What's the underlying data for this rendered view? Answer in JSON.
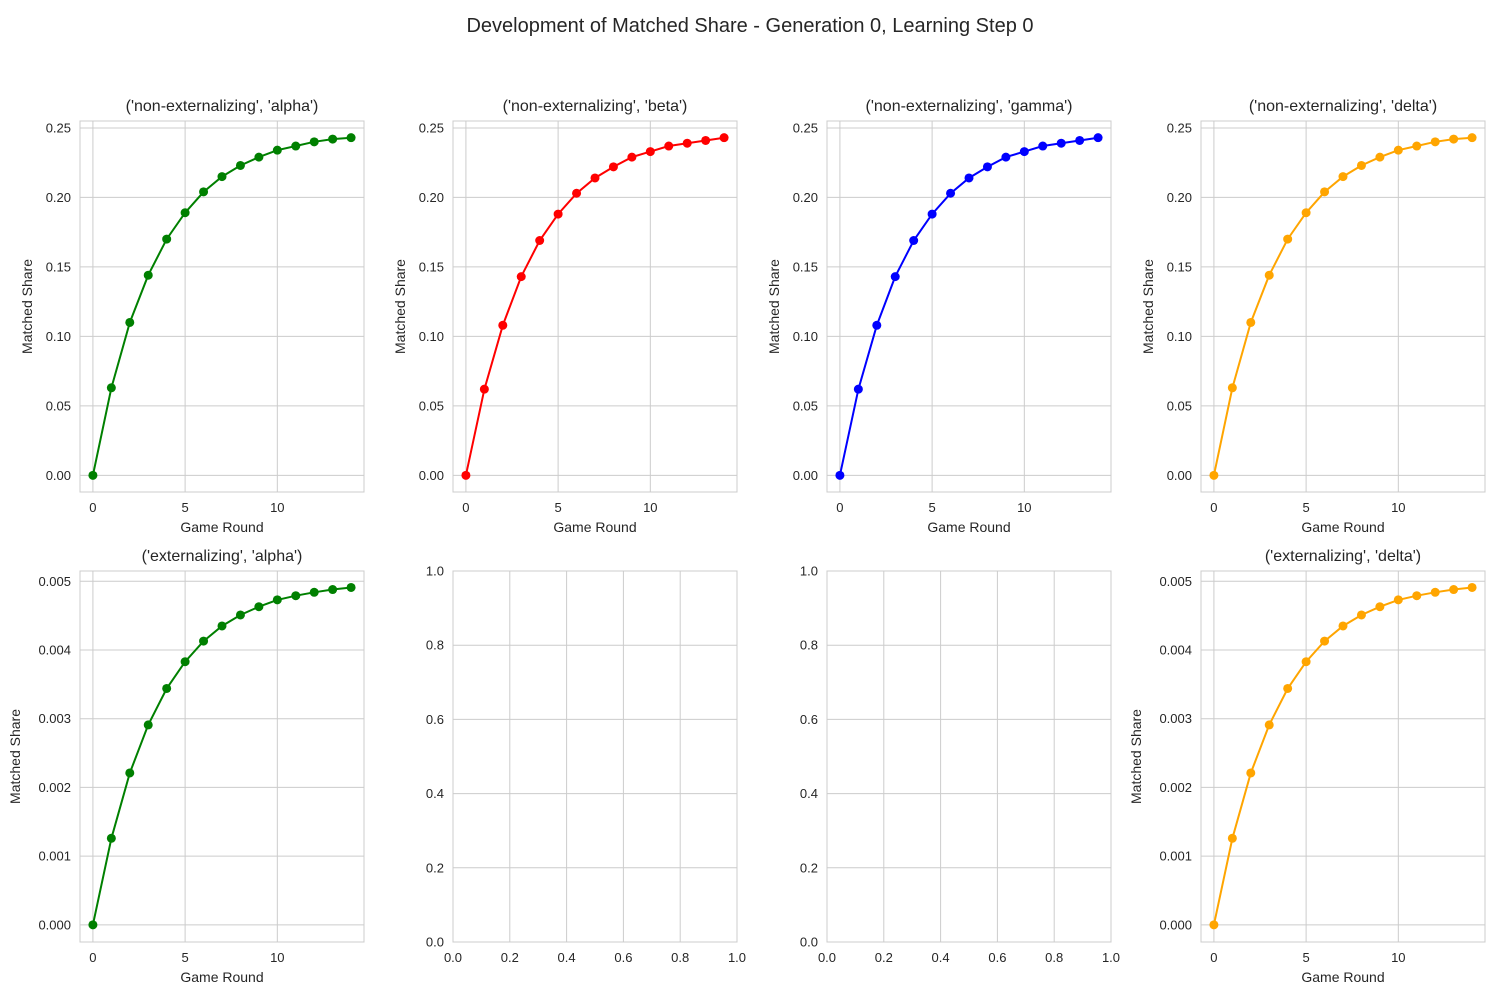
{
  "figure": {
    "title": "Development of Matched Share - Generation 0, Learning Step 0"
  },
  "chart_data": [
    {
      "type": "line",
      "title": "('non-externalizing', 'alpha')",
      "xlabel": "Game Round",
      "ylabel": "Matched Share",
      "color": "#008000",
      "xlim": [
        -0.7,
        14.7
      ],
      "ylim": [
        -0.012,
        0.255
      ],
      "xticks": [
        0,
        5,
        10
      ],
      "yticks": [
        0.0,
        0.05,
        0.1,
        0.15,
        0.2,
        0.25
      ],
      "ytick_labels": [
        "0.00",
        "0.05",
        "0.10",
        "0.15",
        "0.20",
        "0.25"
      ],
      "x": [
        0,
        1,
        2,
        3,
        4,
        5,
        6,
        7,
        8,
        9,
        10,
        11,
        12,
        13,
        14
      ],
      "y": [
        0.0,
        0.063,
        0.11,
        0.144,
        0.17,
        0.189,
        0.204,
        0.215,
        0.223,
        0.229,
        0.234,
        0.237,
        0.24,
        0.242,
        0.243
      ]
    },
    {
      "type": "line",
      "title": "('non-externalizing', 'beta')",
      "xlabel": "Game Round",
      "ylabel": "Matched Share",
      "color": "#ff0000",
      "xlim": [
        -0.7,
        14.7
      ],
      "ylim": [
        -0.012,
        0.255
      ],
      "xticks": [
        0,
        5,
        10
      ],
      "yticks": [
        0.0,
        0.05,
        0.1,
        0.15,
        0.2,
        0.25
      ],
      "ytick_labels": [
        "0.00",
        "0.05",
        "0.10",
        "0.15",
        "0.20",
        "0.25"
      ],
      "x": [
        0,
        1,
        2,
        3,
        4,
        5,
        6,
        7,
        8,
        9,
        10,
        11,
        12,
        13,
        14
      ],
      "y": [
        0.0,
        0.062,
        0.108,
        0.143,
        0.169,
        0.188,
        0.203,
        0.214,
        0.222,
        0.229,
        0.233,
        0.237,
        0.239,
        0.241,
        0.243
      ]
    },
    {
      "type": "line",
      "title": "('non-externalizing', 'gamma')",
      "xlabel": "Game Round",
      "ylabel": "Matched Share",
      "color": "#0000ff",
      "xlim": [
        -0.7,
        14.7
      ],
      "ylim": [
        -0.012,
        0.255
      ],
      "xticks": [
        0,
        5,
        10
      ],
      "yticks": [
        0.0,
        0.05,
        0.1,
        0.15,
        0.2,
        0.25
      ],
      "ytick_labels": [
        "0.00",
        "0.05",
        "0.10",
        "0.15",
        "0.20",
        "0.25"
      ],
      "x": [
        0,
        1,
        2,
        3,
        4,
        5,
        6,
        7,
        8,
        9,
        10,
        11,
        12,
        13,
        14
      ],
      "y": [
        0.0,
        0.062,
        0.108,
        0.143,
        0.169,
        0.188,
        0.203,
        0.214,
        0.222,
        0.229,
        0.233,
        0.237,
        0.239,
        0.241,
        0.243
      ]
    },
    {
      "type": "line",
      "title": "('non-externalizing', 'delta')",
      "xlabel": "Game Round",
      "ylabel": "Matched Share",
      "color": "#ffa500",
      "xlim": [
        -0.7,
        14.7
      ],
      "ylim": [
        -0.012,
        0.255
      ],
      "xticks": [
        0,
        5,
        10
      ],
      "yticks": [
        0.0,
        0.05,
        0.1,
        0.15,
        0.2,
        0.25
      ],
      "ytick_labels": [
        "0.00",
        "0.05",
        "0.10",
        "0.15",
        "0.20",
        "0.25"
      ],
      "x": [
        0,
        1,
        2,
        3,
        4,
        5,
        6,
        7,
        8,
        9,
        10,
        11,
        12,
        13,
        14
      ],
      "y": [
        0.0,
        0.063,
        0.11,
        0.144,
        0.17,
        0.189,
        0.204,
        0.215,
        0.223,
        0.229,
        0.234,
        0.237,
        0.24,
        0.242,
        0.243
      ]
    },
    {
      "type": "line",
      "title": "('externalizing', 'alpha')",
      "xlabel": "Game Round",
      "ylabel": "Matched Share",
      "color": "#008000",
      "xlim": [
        -0.7,
        14.7
      ],
      "ylim": [
        -0.00025,
        0.00515
      ],
      "xticks": [
        0,
        5,
        10
      ],
      "yticks": [
        0.0,
        0.001,
        0.002,
        0.003,
        0.004,
        0.005
      ],
      "ytick_labels": [
        "0.000",
        "0.001",
        "0.002",
        "0.003",
        "0.004",
        "0.005"
      ],
      "x": [
        0,
        1,
        2,
        3,
        4,
        5,
        6,
        7,
        8,
        9,
        10,
        11,
        12,
        13,
        14
      ],
      "y": [
        0.0,
        0.00126,
        0.00221,
        0.00291,
        0.00344,
        0.00383,
        0.00413,
        0.00435,
        0.00451,
        0.00463,
        0.00473,
        0.00479,
        0.00484,
        0.00488,
        0.00491
      ]
    },
    {
      "type": "empty",
      "title": "",
      "xlabel": "",
      "ylabel": "",
      "xlim": [
        0,
        1
      ],
      "ylim": [
        0,
        1
      ],
      "xticks": [
        0.0,
        0.2,
        0.4,
        0.6,
        0.8,
        1.0
      ],
      "xtick_labels": [
        "0.0",
        "0.2",
        "0.4",
        "0.6",
        "0.8",
        "1.0"
      ],
      "yticks": [
        0.0,
        0.2,
        0.4,
        0.6,
        0.8,
        1.0
      ],
      "ytick_labels": [
        "0.0",
        "0.2",
        "0.4",
        "0.6",
        "0.8",
        "1.0"
      ],
      "x": [],
      "y": []
    },
    {
      "type": "empty",
      "title": "",
      "xlabel": "",
      "ylabel": "",
      "xlim": [
        0,
        1
      ],
      "ylim": [
        0,
        1
      ],
      "xticks": [
        0.0,
        0.2,
        0.4,
        0.6,
        0.8,
        1.0
      ],
      "xtick_labels": [
        "0.0",
        "0.2",
        "0.4",
        "0.6",
        "0.8",
        "1.0"
      ],
      "yticks": [
        0.0,
        0.2,
        0.4,
        0.6,
        0.8,
        1.0
      ],
      "ytick_labels": [
        "0.0",
        "0.2",
        "0.4",
        "0.6",
        "0.8",
        "1.0"
      ],
      "x": [],
      "y": []
    },
    {
      "type": "line",
      "title": "('externalizing', 'delta')",
      "xlabel": "Game Round",
      "ylabel": "Matched Share",
      "color": "#ffa500",
      "xlim": [
        -0.7,
        14.7
      ],
      "ylim": [
        -0.00025,
        0.00515
      ],
      "xticks": [
        0,
        5,
        10
      ],
      "yticks": [
        0.0,
        0.001,
        0.002,
        0.003,
        0.004,
        0.005
      ],
      "ytick_labels": [
        "0.000",
        "0.001",
        "0.002",
        "0.003",
        "0.004",
        "0.005"
      ],
      "x": [
        0,
        1,
        2,
        3,
        4,
        5,
        6,
        7,
        8,
        9,
        10,
        11,
        12,
        13,
        14
      ],
      "y": [
        0.0,
        0.00126,
        0.00221,
        0.00291,
        0.00344,
        0.00383,
        0.00413,
        0.00435,
        0.00451,
        0.00463,
        0.00473,
        0.00479,
        0.00484,
        0.00488,
        0.00491
      ]
    }
  ]
}
